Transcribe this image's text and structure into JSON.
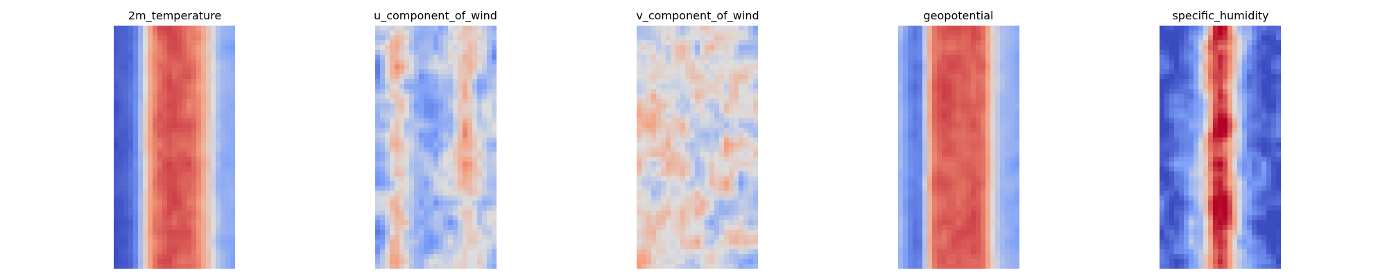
{
  "chart_data": [
    {
      "type": "heatmap",
      "title": "2m_temperature",
      "colormap": "coolwarm",
      "axes": "off",
      "grid": false,
      "profile": [
        0.04,
        0.05,
        0.06,
        0.1,
        0.18,
        0.35,
        0.55,
        0.72,
        0.8,
        0.84,
        0.86,
        0.88,
        0.87,
        0.86,
        0.85,
        0.84,
        0.82,
        0.78,
        0.7,
        0.6,
        0.48,
        0.38,
        0.32,
        0.3,
        0.29
      ]
    },
    {
      "type": "heatmap",
      "title": "u_component_of_wind",
      "colormap": "coolwarm",
      "axes": "off",
      "grid": false,
      "profile": [
        0.32,
        0.36,
        0.45,
        0.58,
        0.62,
        0.55,
        0.46,
        0.4,
        0.37,
        0.36,
        0.35,
        0.35,
        0.35,
        0.36,
        0.37,
        0.4,
        0.46,
        0.55,
        0.62,
        0.6,
        0.5,
        0.42,
        0.38,
        0.36,
        0.35
      ]
    },
    {
      "type": "heatmap",
      "title": "v_component_of_wind",
      "colormap": "coolwarm",
      "axes": "off",
      "grid": false,
      "profile": [
        0.58,
        0.56,
        0.54,
        0.52,
        0.5,
        0.5,
        0.49,
        0.5,
        0.5,
        0.51,
        0.5,
        0.49,
        0.5,
        0.51,
        0.5,
        0.5,
        0.49,
        0.5,
        0.51,
        0.5,
        0.48,
        0.47,
        0.46,
        0.44,
        0.43
      ]
    },
    {
      "type": "heatmap",
      "title": "geopotential",
      "colormap": "coolwarm",
      "axes": "off",
      "grid": false,
      "profile": [
        0.34,
        0.26,
        0.18,
        0.14,
        0.16,
        0.4,
        0.68,
        0.82,
        0.85,
        0.86,
        0.86,
        0.86,
        0.86,
        0.86,
        0.86,
        0.86,
        0.85,
        0.82,
        0.72,
        0.55,
        0.42,
        0.35,
        0.32,
        0.3,
        0.28
      ]
    },
    {
      "type": "heatmap",
      "title": "specific_humidity",
      "colormap": "coolwarm",
      "axes": "off",
      "grid": false,
      "profile": [
        0.06,
        0.07,
        0.08,
        0.1,
        0.14,
        0.18,
        0.24,
        0.3,
        0.4,
        0.58,
        0.78,
        0.92,
        0.96,
        0.9,
        0.76,
        0.58,
        0.42,
        0.3,
        0.22,
        0.16,
        0.12,
        0.09,
        0.08,
        0.07,
        0.06
      ]
    }
  ]
}
